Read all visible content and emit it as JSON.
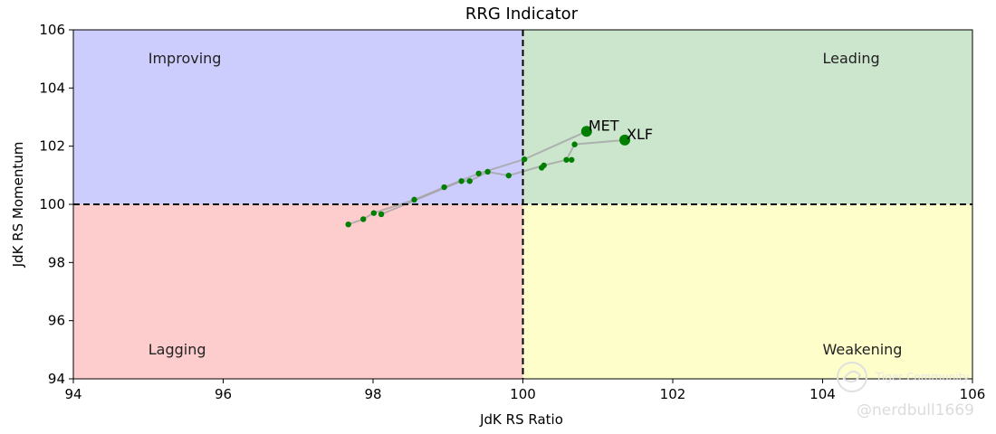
{
  "chart_data": {
    "type": "scatter",
    "title": "RRG Indicator",
    "xlabel": "JdK RS Ratio",
    "ylabel": "JdK RS Momentum",
    "xlim": [
      94,
      106
    ],
    "ylim": [
      94,
      106
    ],
    "xticks": [
      94,
      96,
      98,
      100,
      102,
      104,
      106
    ],
    "yticks": [
      94,
      96,
      98,
      100,
      102,
      104,
      106
    ],
    "center": {
      "x": 100,
      "y": 100
    },
    "quadrants": [
      {
        "name": "Improving",
        "color": "#cdcdfd",
        "label_pos": [
          95,
          105
        ]
      },
      {
        "name": "Leading",
        "color": "#cce5cd",
        "label_pos": [
          104,
          105
        ]
      },
      {
        "name": "Lagging",
        "color": "#fdcccd",
        "label_pos": [
          95,
          95
        ]
      },
      {
        "name": "Weakening",
        "color": "#fefecb",
        "label_pos": [
          104,
          95
        ]
      }
    ],
    "series": [
      {
        "name": "MET",
        "tail": [
          {
            "x": 97.67,
            "y": 99.31
          },
          {
            "x": 97.87,
            "y": 99.49
          },
          {
            "x": 98.01,
            "y": 99.7
          },
          {
            "x": 98.55,
            "y": 100.16
          },
          {
            "x": 98.95,
            "y": 100.59
          },
          {
            "x": 99.41,
            "y": 101.06
          },
          {
            "x": 100.02,
            "y": 101.55
          },
          {
            "x": 100.85,
            "y": 102.51
          }
        ]
      },
      {
        "name": "XLF",
        "tail": [
          {
            "x": 98.11,
            "y": 99.66
          },
          {
            "x": 99.18,
            "y": 100.8
          },
          {
            "x": 99.29,
            "y": 100.8
          },
          {
            "x": 99.53,
            "y": 101.12
          },
          {
            "x": 99.81,
            "y": 100.99
          },
          {
            "x": 100.28,
            "y": 101.34
          },
          {
            "x": 100.58,
            "y": 101.53
          },
          {
            "x": 100.69,
            "y": 102.06
          },
          {
            "x": 101.36,
            "y": 102.21
          }
        ]
      }
    ],
    "extra_points": [
      {
        "x": 100.25,
        "y": 101.26
      },
      {
        "x": 100.65,
        "y": 101.53
      }
    ],
    "colors": {
      "point": "#007f00",
      "tail_line": "#a0a0a0",
      "center_line": "#000000"
    }
  },
  "watermark": {
    "brand": "Tiger Community",
    "handle": "@nerdbull1669"
  }
}
